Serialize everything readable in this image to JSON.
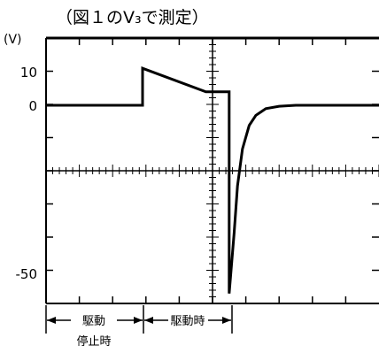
{
  "chart_data": {
    "type": "line",
    "title": "（図１のV₃で測定）",
    "unit_label": "(V)",
    "y_ticks": [
      {
        "value": 10,
        "label": "10"
      },
      {
        "value": 0,
        "label": "0"
      },
      {
        "value": -50,
        "label": "-50"
      }
    ],
    "ylim": [
      -60,
      20
    ],
    "xlim": [
      0,
      10
    ],
    "grid": false,
    "series": [
      {
        "x": [
          0,
          2.9,
          2.9,
          4.8,
          5.5,
          5.5,
          5.65,
          5.75,
          5.9,
          6.1,
          6.3,
          6.6,
          7.0,
          7.5,
          10
        ],
        "y": [
          0,
          0,
          11,
          4,
          4,
          -56,
          -38,
          -24,
          -13,
          -6,
          -3,
          -1,
          -0.3,
          0,
          0
        ]
      }
    ],
    "phases": [
      {
        "label": "駆動",
        "sublabel": "停止時"
      },
      {
        "label": "駆動時"
      }
    ]
  }
}
